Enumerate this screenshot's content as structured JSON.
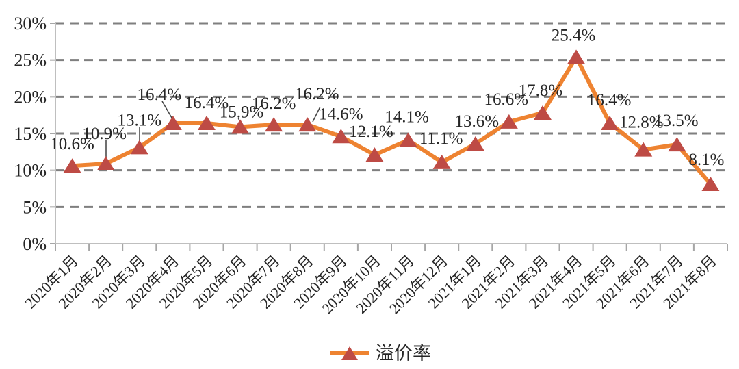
{
  "chart_data": {
    "type": "line",
    "title": "",
    "categories": [
      "2020年1月",
      "2020年2月",
      "2020年3月",
      "2020年4月",
      "2020年5月",
      "2020年6月",
      "2020年7月",
      "2020年8月",
      "2020年9月",
      "2020年10月",
      "2020年11月",
      "2020年12月",
      "2021年1月",
      "2021年2月",
      "2021年3月",
      "2021年4月",
      "2021年5月",
      "2021年6月",
      "2021年7月",
      "2021年8月"
    ],
    "series": [
      {
        "name": "溢价率",
        "values": [
          10.6,
          10.9,
          13.1,
          16.4,
          16.4,
          15.9,
          16.2,
          16.2,
          14.6,
          12.1,
          14.1,
          11.1,
          13.6,
          16.6,
          17.8,
          25.4,
          16.4,
          12.8,
          13.5,
          8.1
        ]
      }
    ],
    "ylim": [
      0,
      30
    ],
    "yticks": [
      0,
      5,
      10,
      15,
      20,
      25,
      30
    ],
    "ytick_format": "{v}%",
    "data_label_format": "{v}%",
    "grid": "horizontal-dashed",
    "legend_position": "bottom-center",
    "marker": "triangle",
    "colors": {
      "line": "#EE8331",
      "marker": "#BE4B45",
      "gridline": "#7F7F7F",
      "axis": "#BFBFBF",
      "tick": "#A6A6A6",
      "text": "#262626",
      "leader": "#404040",
      "background": "#FFFFFF"
    }
  }
}
